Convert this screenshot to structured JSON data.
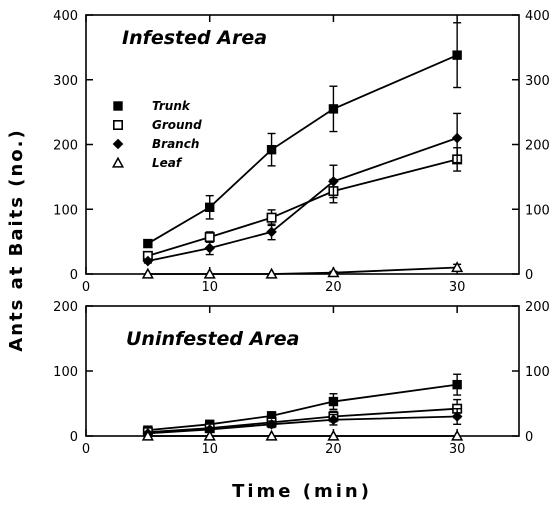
{
  "chart_data": {
    "type": "line",
    "ylabel": "Ants at Baits (no.)",
    "xlabel": "Time (min)",
    "legend": {
      "placement": "upper-left of top panel",
      "entries": [
        {
          "name": "Trunk",
          "marker": "filled-square"
        },
        {
          "name": "Ground",
          "marker": "open-square"
        },
        {
          "name": "Branch",
          "marker": "filled-diamond"
        },
        {
          "name": "Leaf",
          "marker": "open-triangle"
        }
      ]
    },
    "panels": [
      {
        "title": "Infested Area",
        "xlim": [
          0,
          35
        ],
        "ylim": [
          0,
          400
        ],
        "xticks": [
          0,
          10,
          20,
          30
        ],
        "yticks": [
          0,
          100,
          200,
          300,
          400
        ],
        "x": [
          5,
          10,
          15,
          20,
          30
        ],
        "series": [
          {
            "name": "Trunk",
            "marker": "filled-square",
            "values": [
              47,
              103,
              192,
              255,
              338
            ],
            "errors": [
              4,
              18,
              25,
              35,
              50
            ]
          },
          {
            "name": "Ground",
            "marker": "open-square",
            "values": [
              28,
              57,
              87,
              128,
              177
            ],
            "errors": [
              3,
              8,
              12,
              18,
              18
            ]
          },
          {
            "name": "Branch",
            "marker": "filled-diamond",
            "values": [
              20,
              40,
              65,
              143,
              210
            ],
            "errors": [
              3,
              10,
              12,
              25,
              38
            ]
          },
          {
            "name": "Leaf",
            "marker": "open-triangle",
            "values": [
              0,
              0,
              0,
              2,
              10
            ],
            "errors": [
              0,
              0,
              0,
              2,
              5
            ]
          }
        ]
      },
      {
        "title": "Uninfested Area",
        "xlim": [
          0,
          35
        ],
        "ylim": [
          0,
          200
        ],
        "xticks": [
          0,
          10,
          20,
          30
        ],
        "yticks": [
          0,
          100,
          200
        ],
        "x": [
          5,
          10,
          15,
          20,
          30
        ],
        "series": [
          {
            "name": "Trunk",
            "marker": "filled-square",
            "values": [
              9,
              18,
              31,
              53,
              79
            ],
            "errors": [
              3,
              4,
              6,
              12,
              16
            ]
          },
          {
            "name": "Ground",
            "marker": "open-square",
            "values": [
              6,
              12,
              21,
              30,
              42
            ],
            "errors": [
              2,
              3,
              5,
              8,
              14
            ]
          },
          {
            "name": "Branch",
            "marker": "filled-diamond",
            "values": [
              4,
              10,
              18,
              25,
              30
            ],
            "errors": [
              2,
              3,
              5,
              8,
              12
            ]
          },
          {
            "name": "Leaf",
            "marker": "open-triangle",
            "values": [
              0,
              0,
              0,
              0,
              0
            ],
            "errors": [
              0,
              0,
              0,
              0,
              0
            ]
          }
        ]
      }
    ]
  }
}
